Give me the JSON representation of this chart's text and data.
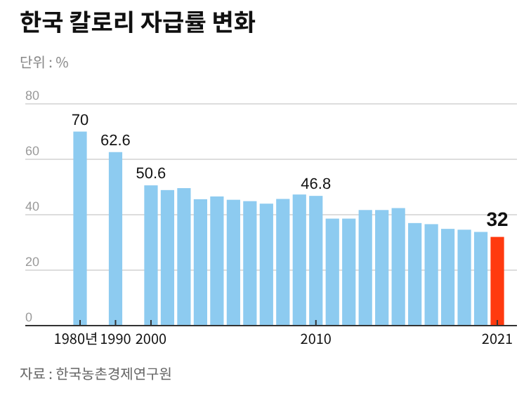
{
  "chart_data": {
    "type": "bar",
    "title": "한국 칼로리 자급률 변화",
    "subtitle": "단위 : %",
    "categories": [
      "1980년",
      "1990",
      "2000",
      null,
      null,
      null,
      null,
      null,
      null,
      null,
      null,
      null,
      "2010",
      null,
      null,
      null,
      null,
      null,
      null,
      null,
      null,
      null,
      null,
      "2021"
    ],
    "values": [
      70,
      62.6,
      50.6,
      48.9,
      49.6,
      45.6,
      46.6,
      45.4,
      44.9,
      44.0,
      45.7,
      47.3,
      46.8,
      38.6,
      38.6,
      41.7,
      41.7,
      42.4,
      37.0,
      36.6,
      34.9,
      34.6,
      33.8,
      32
    ],
    "colors": [
      "#8dcbf0",
      "#8dcbf0",
      "#8dcbf0",
      "#8dcbf0",
      "#8dcbf0",
      "#8dcbf0",
      "#8dcbf0",
      "#8dcbf0",
      "#8dcbf0",
      "#8dcbf0",
      "#8dcbf0",
      "#8dcbf0",
      "#8dcbf0",
      "#8dcbf0",
      "#8dcbf0",
      "#8dcbf0",
      "#8dcbf0",
      "#8dcbf0",
      "#8dcbf0",
      "#8dcbf0",
      "#8dcbf0",
      "#8dcbf0",
      "#8dcbf0",
      "#ff3a0f"
    ],
    "value_labels": [
      "70",
      "62.6",
      "50.6",
      null,
      null,
      null,
      null,
      null,
      null,
      null,
      null,
      null,
      "46.8",
      null,
      null,
      null,
      null,
      null,
      null,
      null,
      null,
      null,
      null,
      "32"
    ],
    "ylim": [
      0,
      80
    ],
    "yticks": [
      0,
      20,
      40,
      60,
      80
    ],
    "grid": "y",
    "annotations": [
      "자료 : 한국농촌경제연구원"
    ]
  }
}
